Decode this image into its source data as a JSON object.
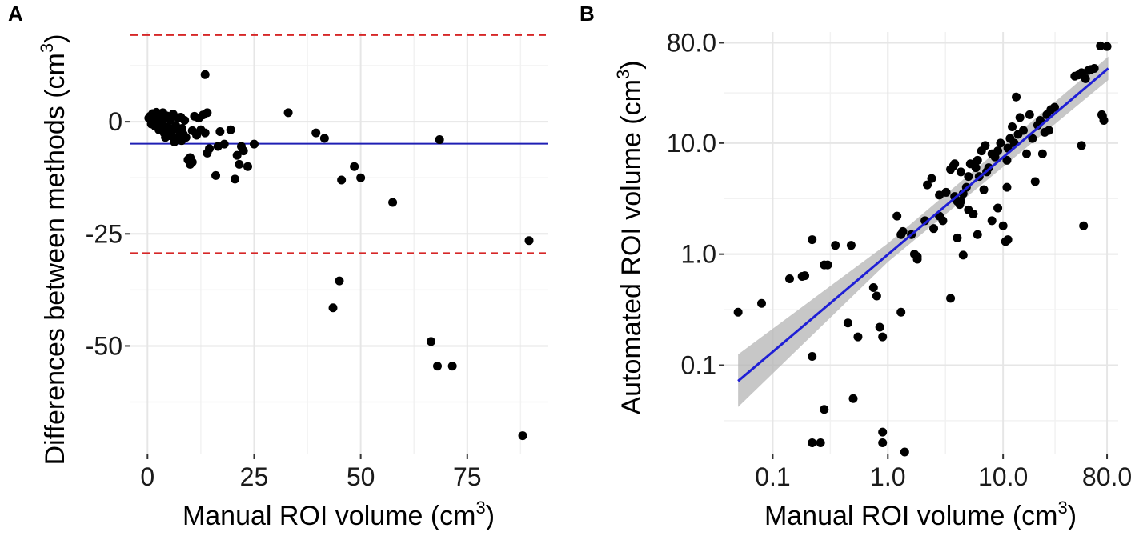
{
  "chart_data": [
    {
      "panel": "A",
      "type": "scatter",
      "xlabel": "Manual ROI volume (cm",
      "xlabel_sup": "3",
      "xlabel_end": ")",
      "ylabel": "Differences between methods (cm",
      "ylabel_sup": "3",
      "ylabel_end": ")",
      "xlim": [
        -4,
        94
      ],
      "ylim": [
        -74,
        20
      ],
      "xticks": [
        0,
        25,
        50,
        75
      ],
      "xtick_labels": [
        "0",
        "25",
        "50",
        "75"
      ],
      "yticks": [
        0,
        -25,
        -50
      ],
      "ytick_labels": [
        "0",
        "-25",
        "-50"
      ],
      "mean_line": {
        "y": -4.9,
        "color": "#1f1fb4"
      },
      "limit_lines": [
        {
          "y": 19.3,
          "color": "#d62728",
          "style": "dashed"
        },
        {
          "y": -29.3,
          "color": "#d62728",
          "style": "dashed"
        }
      ],
      "points": {
        "x": [
          0.3,
          0.6,
          0.9,
          1.2,
          1.5,
          1.8,
          2.1,
          2.4,
          2.7,
          3.0,
          3.3,
          3.6,
          3.9,
          4.2,
          4.5,
          4.8,
          5.1,
          5.4,
          5.7,
          6.0,
          6.3,
          6.6,
          6.9,
          7.2,
          7.5,
          7.8,
          8.1,
          8.4,
          8.7,
          9.0,
          9.5,
          10.0,
          10.5,
          11.0,
          11.5,
          12.0,
          12.5,
          13.0,
          13.5,
          14.0,
          1.0,
          2.0,
          3.0,
          4.0,
          5.0,
          6.0,
          7.0,
          8.0,
          2.5,
          3.5,
          4.5,
          5.5,
          1.5,
          2.8,
          4.2,
          13.5,
          14.5,
          16.5,
          17.0,
          18.0,
          19.5,
          20.5,
          21.0,
          21.5,
          22.0,
          22.5,
          23.5,
          25.0,
          14.0,
          16.0,
          10.0,
          10.5,
          33.0,
          39.5,
          41.5,
          45.5,
          48.5,
          50.0,
          57.5,
          43.5,
          45.0,
          66.5,
          68.0,
          71.5,
          68.5,
          88.0,
          89.5
        ],
        "y": [
          0.8,
          1.2,
          -0.5,
          1.8,
          0.2,
          -1.0,
          2.1,
          0.5,
          -1.8,
          1.5,
          -0.3,
          2.0,
          -2.5,
          0.7,
          1.3,
          -1.2,
          -3.1,
          0.4,
          -2.0,
          1.7,
          -4.5,
          -0.8,
          -3.8,
          0.9,
          -2.2,
          1.0,
          -1.5,
          -2.8,
          0.3,
          -3.5,
          -8.5,
          -9.5,
          -2.0,
          1.2,
          -3.0,
          0.8,
          -1.8,
          1.5,
          -2.5,
          2.0,
          0.0,
          -0.5,
          -1.5,
          -2.5,
          -3.0,
          -3.5,
          -4.0,
          -4.2,
          -0.8,
          -1.8,
          -2.2,
          -2.8,
          0.5,
          -1.2,
          -3.5,
          10.5,
          -6.0,
          -5.5,
          -2.2,
          -5.0,
          -1.8,
          -12.8,
          -7.5,
          -9.5,
          -5.5,
          -6.5,
          -10.0,
          -5.0,
          -7.0,
          -12.0,
          -8.0,
          -9.0,
          2.0,
          -2.5,
          -3.7,
          -13.0,
          -10.0,
          -12.5,
          -18.0,
          -41.5,
          -35.5,
          -49.0,
          -54.5,
          -54.5,
          -4.0,
          -70.0,
          -26.5
        ]
      }
    },
    {
      "panel": "B",
      "type": "scatter",
      "scale": "log10",
      "xlabel": "Manual ROI volume (cm",
      "xlabel_sup": "3",
      "xlabel_end": ")",
      "ylabel": "Automated ROI volume (cm",
      "ylabel_sup": "3",
      "ylabel_end": ")",
      "xlim": [
        0.038,
        100
      ],
      "ylim": [
        0.016,
        100
      ],
      "xticks": [
        0.1,
        1,
        10,
        80
      ],
      "xtick_labels": [
        "0.1",
        "1.0",
        "10.0",
        "80.0"
      ],
      "yticks": [
        0.1,
        1,
        10,
        80
      ],
      "ytick_labels": [
        "0.1",
        "1.0",
        "10.0",
        "80.0"
      ],
      "fit_line": {
        "x": [
          0.05,
          82
        ],
        "y": [
          0.072,
          47
        ],
        "color": "#1f1fd6"
      },
      "confidence_band": {
        "x": [
          0.05,
          1,
          82
        ],
        "lower": [
          0.042,
          0.85,
          37
        ],
        "upper": [
          0.125,
          1.25,
          60
        ],
        "color": "#b4b4b4"
      },
      "points": {
        "x": [
          0.05,
          0.08,
          0.14,
          0.18,
          0.19,
          0.22,
          0.22,
          0.22,
          0.26,
          0.28,
          0.3,
          0.35,
          0.45,
          0.5,
          0.55,
          0.75,
          0.8,
          0.85,
          0.9,
          0.9,
          0.9,
          1.2,
          1.3,
          1.4,
          1.6,
          1.7,
          1.8,
          1.8,
          2.1,
          2.2,
          2.4,
          2.5,
          2.8,
          3.0,
          3.2,
          3.5,
          3.7,
          3.8,
          4.0,
          4.2,
          4.3,
          4.5,
          4.8,
          5.0,
          5.2,
          5.5,
          5.8,
          6.0,
          6.2,
          6.5,
          6.8,
          7.0,
          7.2,
          7.5,
          8.0,
          8.5,
          9.0,
          9.5,
          10.0,
          10.5,
          10.8,
          11.0,
          11.5,
          12.0,
          12.5,
          13.0,
          13.5,
          14.0,
          15.0,
          16.0,
          17.0,
          18.0,
          19.0,
          20.0,
          21.0,
          22.0,
          23.0,
          24.0,
          25.0,
          26.0,
          28.0,
          42.0,
          45.0,
          48.0,
          52.0,
          55.0,
          58.0,
          62.0,
          70.0,
          72.0,
          73.0,
          75.0,
          80.0,
          48.0,
          50.0,
          2.8,
          3.5,
          4.5,
          10.8,
          11.0,
          1.3,
          1.35,
          0.28,
          0.48,
          4.3,
          5.0,
          5.5,
          6.0,
          8.0,
          9.0,
          3.8,
          4.0
        ],
        "y": [
          0.3,
          0.36,
          0.6,
          0.63,
          0.64,
          1.35,
          0.12,
          0.02,
          0.02,
          0.04,
          0.8,
          1.2,
          0.24,
          0.05,
          0.18,
          0.5,
          0.42,
          0.22,
          0.18,
          0.025,
          0.02,
          2.2,
          0.3,
          0.016,
          1.5,
          1.0,
          0.95,
          0.9,
          2.0,
          4.2,
          4.8,
          1.7,
          3.4,
          2.0,
          3.6,
          5.8,
          6.2,
          6.5,
          3.0,
          2.8,
          5.5,
          3.5,
          4.0,
          5.0,
          6.5,
          2.3,
          6.0,
          7.0,
          5.0,
          8.5,
          3.8,
          9.5,
          5.5,
          6.0,
          8.0,
          7.5,
          8.5,
          10.0,
          1.8,
          1.3,
          7.0,
          9.0,
          11.0,
          14.0,
          10.0,
          26.0,
          12.0,
          17.0,
          13.0,
          8.0,
          18.0,
          11.0,
          4.5,
          14.5,
          16.0,
          8.0,
          12.5,
          18.0,
          13.0,
          20.0,
          21.0,
          40.0,
          41.0,
          43.0,
          38.0,
          45.0,
          46.0,
          47.0,
          75.0,
          18.0,
          17.5,
          16.0,
          74.0,
          9.5,
          1.8,
          2.2,
          0.4,
          0.98,
          4.0,
          1.35,
          1.5,
          1.6,
          0.8,
          1.2,
          3.0,
          2.5,
          2.3,
          1.5,
          2.0,
          2.6,
          3.3,
          1.4
        ]
      }
    }
  ]
}
